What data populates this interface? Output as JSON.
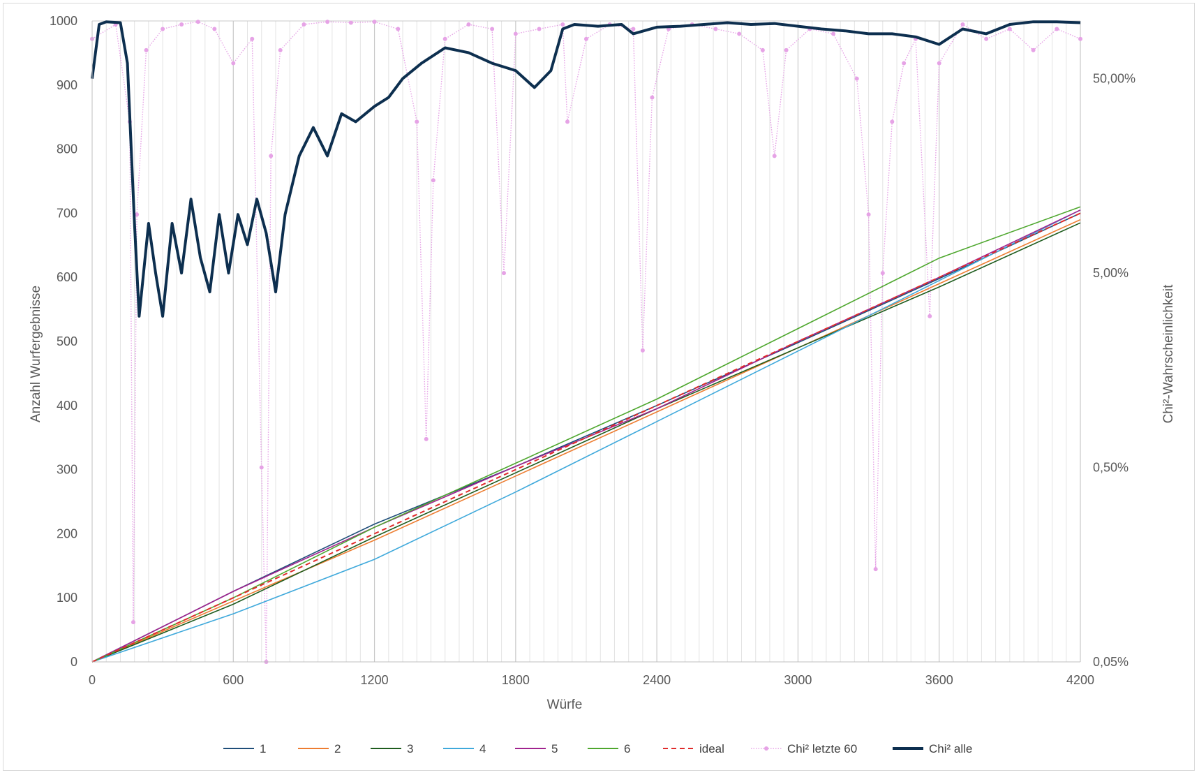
{
  "chart_data": {
    "type": "line",
    "title": "",
    "xlabel": "Würfe",
    "ylabel": "Anzahl Wurfergebnisse",
    "y2label": "Chi²-Wahrscheinlichkeit",
    "xlim": [
      0,
      4200
    ],
    "ylim": [
      0,
      1000
    ],
    "y2_scale": "log",
    "y2lim": [
      0.0005,
      0.99
    ],
    "x_ticks": [
      0,
      600,
      1200,
      1800,
      2400,
      3000,
      3600,
      4200
    ],
    "y_ticks": [
      0,
      100,
      200,
      300,
      400,
      500,
      600,
      700,
      800,
      900,
      1000
    ],
    "y2_ticks": [
      "0,05%",
      "0,50%",
      "5,00%",
      "50,00%"
    ],
    "grid": true,
    "legend_position": "bottom",
    "count_series": [
      {
        "name": "1",
        "color": "#1f4e79",
        "x": [
          0,
          600,
          1200,
          1800,
          2400,
          3000,
          3600,
          4200
        ],
        "values": [
          0,
          110,
          215,
          305,
          400,
          498,
          598,
          700
        ]
      },
      {
        "name": "2",
        "color": "#ed7d31",
        "x": [
          0,
          600,
          1200,
          1800,
          2400,
          3000,
          3600,
          4200
        ],
        "values": [
          0,
          95,
          190,
          290,
          390,
          490,
          590,
          690
        ]
      },
      {
        "name": "3",
        "color": "#1e5c1e",
        "x": [
          0,
          600,
          1200,
          1800,
          2400,
          3000,
          3600,
          4200
        ],
        "values": [
          0,
          90,
          195,
          295,
          395,
          490,
          585,
          685
        ]
      },
      {
        "name": "4",
        "color": "#3fa9db",
        "x": [
          0,
          600,
          1200,
          1800,
          2400,
          3000,
          3600,
          4200
        ],
        "values": [
          0,
          75,
          160,
          265,
          375,
          485,
          595,
          705
        ]
      },
      {
        "name": "5",
        "color": "#a0238f",
        "x": [
          0,
          600,
          1200,
          1800,
          2400,
          3000,
          3600,
          4200
        ],
        "values": [
          0,
          110,
          210,
          305,
          395,
          500,
          600,
          705
        ]
      },
      {
        "name": "6",
        "color": "#4ea72e",
        "x": [
          0,
          600,
          1200,
          1800,
          2400,
          3000,
          3600,
          4200
        ],
        "values": [
          0,
          100,
          210,
          310,
          410,
          520,
          630,
          710
        ]
      },
      {
        "name": "ideal",
        "color": "#e02b2b",
        "x": [
          0,
          4200
        ],
        "values": [
          0,
          700
        ]
      }
    ],
    "chi_series": [
      {
        "name": "Chi² letzte 60",
        "color": "#e6a3e6",
        "x": [
          0,
          100,
          160,
          175,
          190,
          230,
          300,
          380,
          450,
          520,
          600,
          680,
          720,
          740,
          760,
          800,
          900,
          1000,
          1100,
          1200,
          1300,
          1380,
          1420,
          1450,
          1500,
          1600,
          1700,
          1750,
          1800,
          1900,
          2000,
          2020,
          2100,
          2200,
          2300,
          2340,
          2380,
          2450,
          2550,
          2650,
          2750,
          2850,
          2900,
          2950,
          3050,
          3150,
          3250,
          3300,
          3330,
          3360,
          3400,
          3450,
          3500,
          3560,
          3600,
          3700,
          3800,
          3900,
          4000,
          4100,
          4200
        ],
        "values": [
          0.8,
          0.95,
          0.3,
          0.0008,
          0.1,
          0.7,
          0.9,
          0.95,
          0.98,
          0.9,
          0.6,
          0.8,
          0.005,
          0.0005,
          0.2,
          0.7,
          0.95,
          0.98,
          0.97,
          0.98,
          0.9,
          0.3,
          0.007,
          0.15,
          0.8,
          0.95,
          0.9,
          0.05,
          0.85,
          0.9,
          0.95,
          0.3,
          0.8,
          0.95,
          0.9,
          0.02,
          0.4,
          0.9,
          0.95,
          0.9,
          0.85,
          0.7,
          0.2,
          0.7,
          0.9,
          0.85,
          0.5,
          0.1,
          0.0015,
          0.05,
          0.3,
          0.6,
          0.8,
          0.03,
          0.6,
          0.95,
          0.8,
          0.9,
          0.7,
          0.9,
          0.8
        ]
      },
      {
        "name": "Chi² alle",
        "color": "#0d2f4f",
        "x": [
          0,
          30,
          60,
          120,
          150,
          180,
          200,
          240,
          270,
          300,
          340,
          380,
          420,
          460,
          500,
          540,
          580,
          620,
          660,
          700,
          740,
          780,
          820,
          880,
          940,
          1000,
          1060,
          1120,
          1200,
          1260,
          1320,
          1400,
          1500,
          1600,
          1700,
          1800,
          1880,
          1950,
          2000,
          2050,
          2150,
          2250,
          2300,
          2400,
          2500,
          2600,
          2700,
          2800,
          2900,
          3000,
          3100,
          3200,
          3300,
          3400,
          3500,
          3600,
          3700,
          3800,
          3900,
          4000,
          4100,
          4200
        ],
        "values": [
          0.5,
          0.95,
          0.98,
          0.97,
          0.6,
          0.09,
          0.03,
          0.09,
          0.05,
          0.03,
          0.09,
          0.05,
          0.12,
          0.06,
          0.04,
          0.1,
          0.05,
          0.1,
          0.07,
          0.12,
          0.08,
          0.04,
          0.1,
          0.2,
          0.28,
          0.2,
          0.33,
          0.3,
          0.36,
          0.4,
          0.5,
          0.6,
          0.72,
          0.68,
          0.6,
          0.55,
          0.45,
          0.55,
          0.9,
          0.95,
          0.93,
          0.95,
          0.85,
          0.92,
          0.93,
          0.95,
          0.97,
          0.95,
          0.96,
          0.93,
          0.9,
          0.88,
          0.85,
          0.85,
          0.82,
          0.75,
          0.9,
          0.85,
          0.95,
          0.98,
          0.98,
          0.97
        ]
      }
    ]
  }
}
